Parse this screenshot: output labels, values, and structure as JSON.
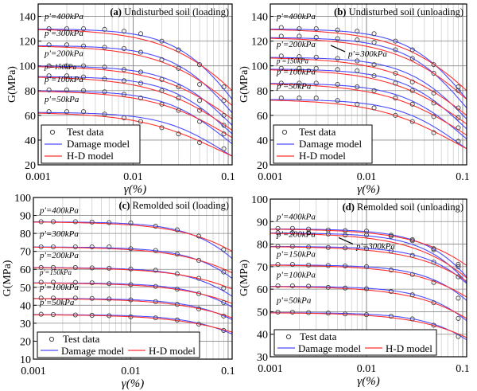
{
  "chart_data": [
    {
      "id": "a",
      "type": "line",
      "title_tag": "(a)",
      "title": "Undisturbed soil (loading)",
      "xlabel": "γ(%)",
      "ylabel": "G(MPa)",
      "xscale": "log",
      "xlim": [
        0.001,
        0.11
      ],
      "ylim": [
        20,
        150
      ],
      "yticks": [
        20,
        40,
        60,
        80,
        100,
        120,
        140
      ],
      "xticks": [
        "0.001",
        "0.01",
        "0.1"
      ],
      "legend": {
        "placement": "bottom-left",
        "layout": "column",
        "entries": [
          "Test data",
          "Damage model",
          "H-D model"
        ]
      },
      "test_x": [
        0.0013,
        0.002,
        0.003,
        0.005,
        0.008,
        0.012,
        0.02,
        0.03,
        0.05,
        0.09
      ],
      "series": [
        {
          "label": "p'=400kPa",
          "G0": 130,
          "damage_end": 73,
          "hd_end": 80,
          "test": [
            130,
            130,
            130,
            129.5,
            128,
            126,
            120,
            113,
            101,
            83
          ]
        },
        {
          "label": "p'=300kPa",
          "G0": 116.5,
          "damage_end": 62,
          "hd_end": 68,
          "test": [
            117,
            117,
            116,
            115,
            114,
            111,
            105,
            98,
            85,
            72
          ]
        },
        {
          "label": "p'=200kPa",
          "G0": 100,
          "damage_end": 52,
          "hd_end": 57,
          "test": [
            100,
            100,
            100,
            99,
            97,
            95,
            89,
            83,
            72,
            60
          ]
        },
        {
          "label": "p'=150kPa",
          "G0": 91.5,
          "damage_end": 45,
          "hd_end": 48,
          "test": [
            92,
            92,
            91,
            89.5,
            88,
            86,
            80,
            74,
            64,
            52
          ]
        },
        {
          "label": "p'=100kPa",
          "G0": 80,
          "damage_end": 37,
          "hd_end": 42,
          "test": [
            80.5,
            80.5,
            80,
            79,
            77,
            74,
            69,
            64,
            55,
            45
          ]
        },
        {
          "label": "p'=50kPa",
          "G0": 62.5,
          "damage_end": 27,
          "hd_end": 27,
          "test": [
            63,
            63,
            63,
            61,
            58,
            55,
            50,
            45,
            38,
            33
          ]
        }
      ]
    },
    {
      "id": "b",
      "type": "line",
      "title_tag": "(b)",
      "title": "Undisturbed soil (unloading)",
      "xlabel": "γ(%)",
      "ylabel": "G(MPa)",
      "xscale": "log",
      "xlim": [
        0.001,
        0.11
      ],
      "ylim": [
        20,
        150
      ],
      "yticks": [
        20,
        40,
        60,
        80,
        100,
        120,
        140
      ],
      "xticks": [
        "0.001",
        "0.01",
        "0.1"
      ],
      "legend": {
        "placement": "bottom-left",
        "layout": "column",
        "entries": [
          "Test data",
          "Damage model",
          "H-D model"
        ]
      },
      "test_x": [
        0.0013,
        0.002,
        0.003,
        0.005,
        0.008,
        0.012,
        0.02,
        0.03,
        0.05,
        0.09
      ],
      "series": [
        {
          "label": "p'=400kPa",
          "G0": 130,
          "damage_end": 73,
          "hd_end": 80,
          "test": [
            131,
            130,
            130,
            129,
            128,
            126,
            120,
            113,
            101,
            83
          ]
        },
        {
          "label": "p'=300kPa",
          "G0": 123,
          "damage_end": 66,
          "hd_end": 73,
          "test": [
            124,
            124,
            123,
            122,
            121,
            119,
            113,
            106,
            94,
            80
          ]
        },
        {
          "label": "p'=200kPa",
          "G0": 107,
          "damage_end": 57,
          "hd_end": 60,
          "test": [
            108,
            107.5,
            107,
            106,
            104,
            101,
            94,
            87,
            78,
            66
          ]
        },
        {
          "label": "p'=150kPa",
          "G0": 97.5,
          "damage_end": 49,
          "hd_end": 53,
          "test": [
            98,
            98,
            98,
            97,
            96,
            92,
            86,
            80,
            70,
            58
          ]
        },
        {
          "label": "p'=100kPa",
          "G0": 86,
          "damage_end": 41,
          "hd_end": 44,
          "test": [
            86,
            86,
            86,
            85,
            83,
            80,
            74,
            69,
            59,
            50
          ]
        },
        {
          "label": "p'=50kPa",
          "G0": 73,
          "damage_end": 33,
          "hd_end": 33,
          "test": [
            74,
            74,
            74,
            72,
            69,
            66,
            60,
            55,
            46,
            39
          ]
        }
      ]
    },
    {
      "id": "c",
      "type": "line",
      "title_tag": "(c)",
      "title": "Remolded soil (loading)",
      "xlabel": "γ(%)",
      "ylabel": "G(MPa)",
      "xscale": "log",
      "xlim": [
        0.001,
        0.11
      ],
      "ylim": [
        10,
        100
      ],
      "yticks": [
        10,
        20,
        30,
        40,
        50,
        60,
        70,
        80,
        90,
        100
      ],
      "xticks": [
        "0.001",
        "0.01",
        "0.1"
      ],
      "legend": {
        "placement": "bottom-left",
        "layout": "row",
        "entries": [
          "Test data",
          "Damage model",
          "H-D model"
        ]
      },
      "test_x": [
        0.0012,
        0.0016,
        0.0027,
        0.004,
        0.006,
        0.01,
        0.018,
        0.03,
        0.05,
        0.09
      ],
      "series": [
        {
          "label": "p'=400kPa",
          "G0": 86.5,
          "damage_end": 66,
          "hd_end": 70,
          "test": [
            86.5,
            86.5,
            86.5,
            86.3,
            86,
            85.8,
            84,
            82,
            78.5,
            71
          ]
        },
        {
          "label": "p'=300kPa",
          "G0": 72.5,
          "damage_end": 55,
          "hd_end": 58,
          "test": [
            72.5,
            72.5,
            72.5,
            72.5,
            72.5,
            71.5,
            70.5,
            68.5,
            65,
            58.5
          ]
        },
        {
          "label": "p'=200kPa",
          "G0": 61,
          "damage_end": 45,
          "hd_end": 49,
          "test": [
            61,
            61,
            61,
            60.8,
            60.6,
            60.2,
            59.5,
            57.5,
            55,
            49.5
          ]
        },
        {
          "label": "p'=150kPa",
          "G0": 52.5,
          "damage_end": 39,
          "hd_end": 41,
          "test": [
            52.8,
            52.8,
            52.7,
            52.5,
            52,
            51.5,
            50.5,
            49,
            46.5,
            41.5
          ]
        },
        {
          "label": "p'=100kPa",
          "G0": 43.8,
          "damage_end": 32,
          "hd_end": 33,
          "test": [
            44,
            44,
            44,
            43.8,
            43.5,
            43,
            42,
            40.5,
            38,
            34
          ]
        },
        {
          "label": "p'=50kPa",
          "G0": 34.8,
          "damage_end": 24,
          "hd_end": 25,
          "test": [
            35,
            34.8,
            34.6,
            34.4,
            34.2,
            33.6,
            33,
            31.8,
            29.5,
            26
          ]
        }
      ]
    },
    {
      "id": "d",
      "type": "line",
      "title_tag": "(d)",
      "title": "Remolded soil (unloading)",
      "xlabel": "γ(%)",
      "ylabel": "G(MPa)",
      "xscale": "log",
      "xlim": [
        0.001,
        0.11
      ],
      "ylim": [
        30,
        100
      ],
      "yticks": [
        30,
        40,
        50,
        60,
        70,
        80,
        90,
        100
      ],
      "xticks": [
        "0.001",
        "0.01",
        "0.1"
      ],
      "legend": {
        "placement": "bottom-left",
        "layout": "row",
        "entries": [
          "Test data",
          "Damage model",
          "H-D model"
        ]
      },
      "test_x": [
        0.0012,
        0.0017,
        0.0025,
        0.004,
        0.006,
        0.01,
        0.018,
        0.03,
        0.05,
        0.09
      ],
      "series": [
        {
          "label": "p'=400kPa",
          "G0": 86.8,
          "damage_end": 65.5,
          "hd_end": 70.5,
          "test": [
            87,
            87,
            86.7,
            86.3,
            86,
            85.8,
            84,
            82,
            78,
            71
          ]
        },
        {
          "label": "p'=300kPa",
          "G0": 85,
          "damage_end": 63,
          "hd_end": 65,
          "test": [
            85,
            85,
            85,
            84.5,
            84,
            84,
            83.5,
            81.5,
            77.5,
            70
          ]
        },
        {
          "label": "p'=200kPa",
          "G0": 79,
          "damage_end": 62.5,
          "hd_end": 63.5,
          "test": [
            79,
            79,
            78.7,
            78.5,
            78.3,
            78,
            77,
            75,
            72,
            65.5
          ]
        },
        {
          "label": "p'=150kPa",
          "G0": 70.8,
          "damage_end": 55,
          "hd_end": 56.5,
          "test": [
            71,
            71,
            70.7,
            70.5,
            70.3,
            70,
            68.5,
            66.5,
            63,
            56
          ]
        },
        {
          "label": "p'=100kPa",
          "G0": 61.3,
          "damage_end": 46,
          "hd_end": 47,
          "test": [
            61.5,
            61.5,
            61.3,
            60.8,
            60.5,
            60.2,
            59,
            57.5,
            54,
            47
          ]
        },
        {
          "label": "p'=50kPa",
          "G0": 49.6,
          "damage_end": 37.5,
          "hd_end": 38.5,
          "test": [
            49.8,
            49.8,
            49.6,
            49.4,
            49,
            48.7,
            48,
            46.8,
            44,
            39
          ]
        }
      ]
    }
  ],
  "colors": {
    "damage": "#4a4aff",
    "hd": "#ff3030",
    "test": "#444444",
    "grid_major": "#888888",
    "grid_minor": "#cfcfcf"
  }
}
